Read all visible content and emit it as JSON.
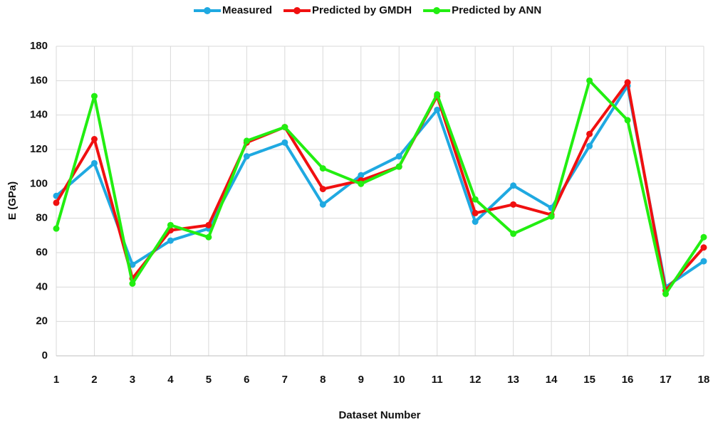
{
  "chart_data": {
    "type": "line",
    "x": [
      1,
      2,
      3,
      4,
      5,
      6,
      7,
      8,
      9,
      10,
      11,
      12,
      13,
      14,
      15,
      16,
      17,
      18
    ],
    "xlim": [
      1,
      18
    ],
    "xticks": [
      1,
      2,
      3,
      4,
      5,
      6,
      7,
      8,
      9,
      10,
      11,
      12,
      13,
      14,
      15,
      16,
      17,
      18
    ],
    "ylim": [
      0,
      180
    ],
    "yticks": [
      0,
      20,
      40,
      60,
      80,
      100,
      120,
      140,
      160,
      180
    ],
    "grid": true,
    "x_label": "Dataset Number",
    "y_label": "E (GPa)",
    "legend": "top",
    "series": [
      {
        "name": "Measured",
        "color": "#1fa9e1",
        "values": [
          93,
          112,
          53,
          67,
          74,
          116,
          124,
          88,
          105,
          116,
          143,
          78,
          99,
          86,
          122,
          157,
          40,
          55
        ]
      },
      {
        "name": "Predicted by GMDH",
        "color": "#f01010",
        "values": [
          89,
          126,
          45,
          73,
          76,
          124,
          133,
          97,
          102,
          110,
          151,
          83,
          88,
          82,
          129,
          159,
          38,
          63
        ]
      },
      {
        "name": "Predicted by ANN",
        "color": "#22ee11",
        "values": [
          74,
          151,
          42,
          76,
          69,
          125,
          133,
          109,
          100,
          110,
          152,
          91,
          71,
          81,
          160,
          137,
          36,
          69
        ]
      }
    ]
  }
}
